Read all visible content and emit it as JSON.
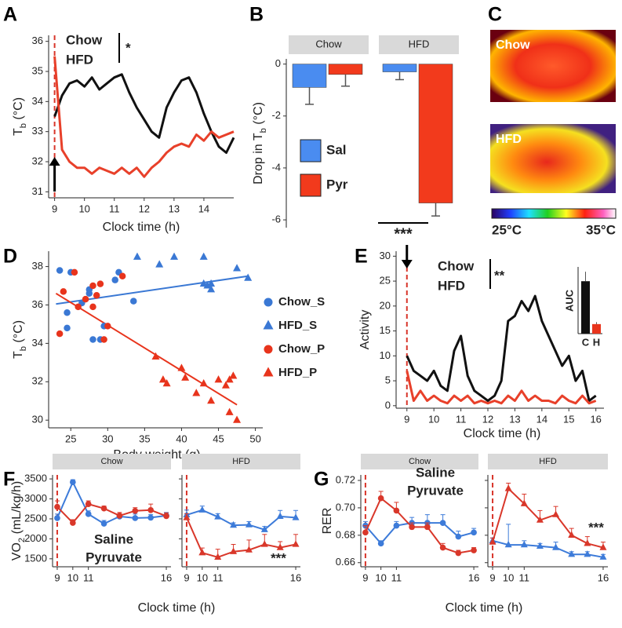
{
  "chart_data": [
    {
      "panel": "A",
      "type": "line",
      "xlabel": "Clock time (h)",
      "ylabel": [
        "T",
        "b",
        " (°C)"
      ],
      "xlim": [
        8.8,
        15
      ],
      "xticks": [
        9,
        10,
        11,
        12,
        13,
        14
      ],
      "ylim": [
        30.8,
        36.2
      ],
      "yticks": [
        31,
        32,
        33,
        34,
        35,
        36
      ],
      "vline": 9,
      "annotation": "*",
      "x": [
        9,
        9.25,
        9.5,
        9.75,
        10,
        10.25,
        10.5,
        10.75,
        11,
        11.25,
        11.5,
        11.75,
        12,
        12.25,
        12.5,
        12.75,
        13,
        13.25,
        13.5,
        13.75,
        14,
        14.25,
        14.5,
        14.75,
        15
      ],
      "series": [
        {
          "name": "Chow",
          "color": "#111111",
          "values": [
            33.5,
            34.2,
            34.6,
            34.7,
            34.5,
            34.8,
            34.4,
            34.6,
            34.8,
            34.9,
            34.3,
            33.8,
            33.4,
            33.0,
            32.8,
            33.8,
            34.3,
            34.7,
            34.8,
            34.3,
            33.6,
            33.0,
            32.5,
            32.3,
            32.8
          ]
        },
        {
          "name": "HFD",
          "color": "#e8402a",
          "values": [
            35.5,
            32.4,
            32.0,
            31.8,
            31.8,
            31.6,
            31.8,
            31.7,
            31.6,
            31.8,
            31.6,
            31.8,
            31.5,
            31.8,
            32.0,
            32.3,
            32.5,
            32.6,
            32.5,
            32.9,
            32.7,
            33.0,
            32.8,
            32.9,
            33.0
          ]
        }
      ]
    },
    {
      "panel": "B",
      "type": "bar",
      "ylabel": [
        "Drop in  T",
        "b",
        " (°C)"
      ],
      "categories": [
        "Chow",
        "HFD"
      ],
      "ylim": [
        -6.3,
        0.2
      ],
      "yticks": [
        0,
        -2,
        -4,
        -6
      ],
      "annotation": "***",
      "series": [
        {
          "name": "Sal",
          "color": "#4a8cf0",
          "values": [
            -0.9,
            -0.3
          ],
          "errors": [
            0.65,
            0.3
          ]
        },
        {
          "name": "Pyr",
          "color": "#f23a1c",
          "values": [
            -0.4,
            -5.35
          ],
          "errors": [
            0.45,
            0.5
          ]
        }
      ]
    },
    {
      "panel": "D",
      "type": "scatter",
      "xlabel": "Body weight (g)",
      "ylabel": [
        "T",
        "b",
        " (°C)"
      ],
      "xlim": [
        22,
        51
      ],
      "xticks": [
        25,
        30,
        35,
        40,
        45,
        50
      ],
      "ylim": [
        29.6,
        38.8
      ],
      "yticks": [
        30,
        32,
        34,
        36,
        38
      ],
      "series": [
        {
          "name": "Chow_S",
          "color": "#3a78d4",
          "marker": "circle",
          "x": [
            23.5,
            24.5,
            25,
            24.5,
            27.5,
            27.5,
            28,
            29,
            29.5,
            31.5,
            31,
            33.5,
            26.5
          ],
          "values": [
            37.8,
            34.8,
            37.7,
            35.6,
            36.6,
            36.8,
            34.2,
            34.2,
            34.9,
            37.7,
            37.3,
            36.2,
            36.1
          ]
        },
        {
          "name": "HFD_S",
          "color": "#3a78d4",
          "marker": "triangle",
          "x": [
            34,
            37,
            39,
            43,
            43.5,
            44,
            44,
            47.5,
            49,
            43
          ],
          "values": [
            38.5,
            38.1,
            38.5,
            38.5,
            37.0,
            37.1,
            36.8,
            37.9,
            37.4,
            37.1
          ]
        },
        {
          "name": "Chow_P",
          "color": "#e8341c",
          "marker": "circle",
          "x": [
            23.5,
            24,
            25.5,
            26,
            27,
            28,
            28.5,
            29,
            29.5,
            30,
            28,
            32
          ],
          "values": [
            34.5,
            36.7,
            37.7,
            35.9,
            36.3,
            37.0,
            36.5,
            37.1,
            34.2,
            34.9,
            35.9,
            37.5
          ]
        },
        {
          "name": "HFD_P",
          "color": "#e8341c",
          "marker": "triangle",
          "x": [
            36.5,
            37.5,
            38,
            40,
            40.5,
            42,
            43,
            44,
            45,
            46,
            46.5,
            46.5,
            47,
            47.5
          ],
          "values": [
            33.3,
            32.1,
            31.9,
            32.7,
            32.2,
            31.4,
            31.9,
            31.0,
            32.1,
            31.8,
            30.4,
            32.1,
            32.3,
            30.0
          ]
        }
      ],
      "fits": [
        {
          "color": "#3a78d4",
          "x": [
            23,
            49
          ],
          "values": [
            36.05,
            37.5
          ]
        },
        {
          "color": "#e8341c",
          "x": [
            23,
            47.5
          ],
          "values": [
            36.6,
            30.8
          ]
        }
      ]
    },
    {
      "panel": "E",
      "type": "line",
      "xlabel": "Clock time (h)",
      "ylabel": "Activity",
      "xlim": [
        8.6,
        16.3
      ],
      "xticks": [
        9,
        10,
        11,
        12,
        13,
        14,
        15,
        16
      ],
      "ylim": [
        -0.5,
        31
      ],
      "yticks": [
        0,
        5,
        10,
        15,
        20,
        25,
        30
      ],
      "vline": 9,
      "annotation": "**",
      "x": [
        9,
        9.25,
        9.5,
        9.75,
        10,
        10.25,
        10.5,
        10.75,
        11,
        11.25,
        11.5,
        11.75,
        12,
        12.25,
        12.5,
        12.75,
        13,
        13.25,
        13.5,
        13.75,
        14,
        14.25,
        14.5,
        14.75,
        15,
        15.25,
        15.5,
        15.75,
        16
      ],
      "series": [
        {
          "name": "Chow",
          "color": "#111111",
          "values": [
            10,
            7,
            6,
            5,
            7,
            4,
            3,
            11,
            14,
            6,
            3,
            2,
            1,
            2,
            5,
            17,
            18,
            21,
            19,
            22,
            17,
            14,
            11,
            8,
            10,
            5,
            7,
            1,
            2
          ]
        },
        {
          "name": "HFD",
          "color": "#e8402a",
          "values": [
            7,
            1,
            3,
            1,
            2,
            1,
            0.5,
            2,
            1,
            2,
            0.5,
            1,
            0.5,
            1,
            0.5,
            2,
            1,
            3,
            1,
            2,
            1,
            1,
            0.5,
            2,
            1,
            0.5,
            2,
            0.5,
            1
          ]
        }
      ],
      "inset": {
        "ylabel": "AUC",
        "categories": [
          "C",
          "H"
        ],
        "values": [
          55,
          10
        ],
        "errors": [
          10,
          2
        ],
        "colors": [
          "#111111",
          "#e8341c"
        ],
        "ylim": [
          0,
          70
        ]
      }
    },
    {
      "panel": "F",
      "type": "line",
      "xlabel": "Clock time (h)",
      "ylabel": [
        "VO",
        "2",
        " (mL/kg/h)"
      ],
      "facets": [
        "Chow",
        "HFD"
      ],
      "facet_markers": [
        "circle",
        "triangle"
      ],
      "xlim": [
        8.7,
        16.3
      ],
      "xticks": [
        9,
        10,
        11,
        16
      ],
      "ylim": [
        1300,
        3600
      ],
      "yticks": [
        1500,
        2000,
        2500,
        3000,
        3500
      ],
      "vline": 9,
      "annotation": "***",
      "x": [
        9,
        10,
        11,
        12,
        13,
        14,
        15,
        16
      ],
      "series": [
        {
          "name": "Saline",
          "color": "#3d7bd9",
          "values": [
            [
              2520,
              3420,
              2620,
              2380,
              2560,
              2520,
              2530,
              2580
            ],
            [
              2600,
              2720,
              2550,
              2340,
              2350,
              2230,
              2560,
              2530
            ]
          ],
          "errors": [
            [
              100,
              60,
              80,
              80,
              60,
              100,
              80,
              80
            ],
            [
              120,
              100,
              80,
              60,
              80,
              80,
              150,
              180
            ]
          ]
        },
        {
          "name": "Pyruvate",
          "color": "#d9372a",
          "values": [
            [
              2800,
              2400,
              2870,
              2760,
              2580,
              2700,
              2720,
              2570
            ],
            [
              2530,
              1650,
              1540,
              1680,
              1720,
              1860,
              1780,
              1860
            ]
          ],
          "errors": [
            [
              150,
              80,
              80,
              60,
              80,
              80,
              150,
              80
            ],
            [
              100,
              120,
              200,
              180,
              250,
              250,
              150,
              250
            ]
          ]
        }
      ]
    },
    {
      "panel": "G",
      "type": "line",
      "xlabel": "Clock time (h)",
      "ylabel": "RER",
      "facets": [
        "Chow",
        "HFD"
      ],
      "facet_markers": [
        "circle",
        "triangle"
      ],
      "xlim": [
        8.7,
        16.3
      ],
      "xticks": [
        9,
        10,
        11,
        16
      ],
      "ylim": [
        0.657,
        0.724
      ],
      "yticks": [
        0.66,
        0.68,
        {
          "value": 0.7,
          "label": "0.70"
        },
        0.72
      ],
      "vline": 9,
      "annotation": "***",
      "x": [
        9,
        10,
        11,
        12,
        13,
        14,
        15,
        16
      ],
      "series": [
        {
          "name": "Saline",
          "color": "#3d7bd9",
          "values": [
            [
              0.687,
              0.674,
              0.687,
              0.689,
              0.689,
              0.689,
              0.679,
              0.682
            ],
            [
              0.676,
              0.673,
              0.673,
              0.672,
              0.671,
              0.666,
              0.666,
              0.664
            ]
          ],
          "errors": [
            [
              0.003,
              0.002,
              0.003,
              0.004,
              0.006,
              0.006,
              0.004,
              0.003
            ],
            [
              0.002,
              0.015,
              0.003,
              0.002,
              0.004,
              0.002,
              0.002,
              0.002
            ]
          ]
        },
        {
          "name": "Pyruvate",
          "color": "#d9372a",
          "values": [
            [
              0.682,
              0.707,
              0.698,
              0.686,
              0.686,
              0.671,
              0.667,
              0.669
            ],
            [
              0.675,
              0.714,
              0.703,
              0.691,
              0.695,
              0.68,
              0.674,
              0.671
            ]
          ],
          "errors": [
            [
              0.005,
              0.005,
              0.006,
              0.003,
              0.003,
              0.003,
              0.002,
              0.002
            ],
            [
              0.003,
              0.004,
              0.007,
              0.007,
              0.006,
              0.005,
              0.005,
              0.004
            ]
          ]
        }
      ]
    }
  ],
  "thermal": {
    "panel": "C",
    "images": [
      "Chow",
      "HFD"
    ],
    "scale_min": "25°C",
    "scale_max": "35°C"
  }
}
